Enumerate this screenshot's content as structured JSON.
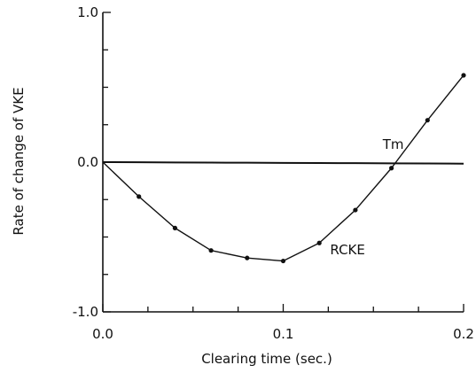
{
  "chart_data": {
    "type": "line",
    "title": "",
    "xlabel": "Clearing time (sec.)",
    "ylabel": "Rate of change of VKE",
    "xlim": [
      0.0,
      0.2
    ],
    "ylim": [
      -1.0,
      1.0
    ],
    "x_ticks": [
      0.0,
      0.1,
      0.2
    ],
    "x_tick_labels": [
      "0.0",
      "0.1",
      "0.2"
    ],
    "y_ticks": [
      -1.0,
      0.0,
      1.0
    ],
    "y_tick_labels": [
      "-1.0",
      "0.0",
      "1.0"
    ],
    "grid": false,
    "colors": {
      "ink": "#111111"
    },
    "series": [
      {
        "name": "Tm",
        "x": [
          0.0,
          0.02,
          0.04,
          0.06,
          0.08,
          0.1,
          0.12,
          0.14,
          0.16,
          0.18,
          0.2
        ],
        "y": [
          0.0,
          -0.001,
          -0.002,
          -0.003,
          -0.004,
          -0.005,
          -0.006,
          -0.007,
          -0.008,
          -0.009,
          -0.01
        ],
        "markers": false
      },
      {
        "name": "RCKE",
        "x": [
          0.0,
          0.02,
          0.04,
          0.06,
          0.08,
          0.1,
          0.12,
          0.14,
          0.16,
          0.18,
          0.2
        ],
        "y": [
          0.0,
          -0.23,
          -0.44,
          -0.59,
          -0.64,
          -0.66,
          -0.54,
          -0.32,
          -0.04,
          0.28,
          0.58
        ],
        "markers": true
      }
    ]
  }
}
